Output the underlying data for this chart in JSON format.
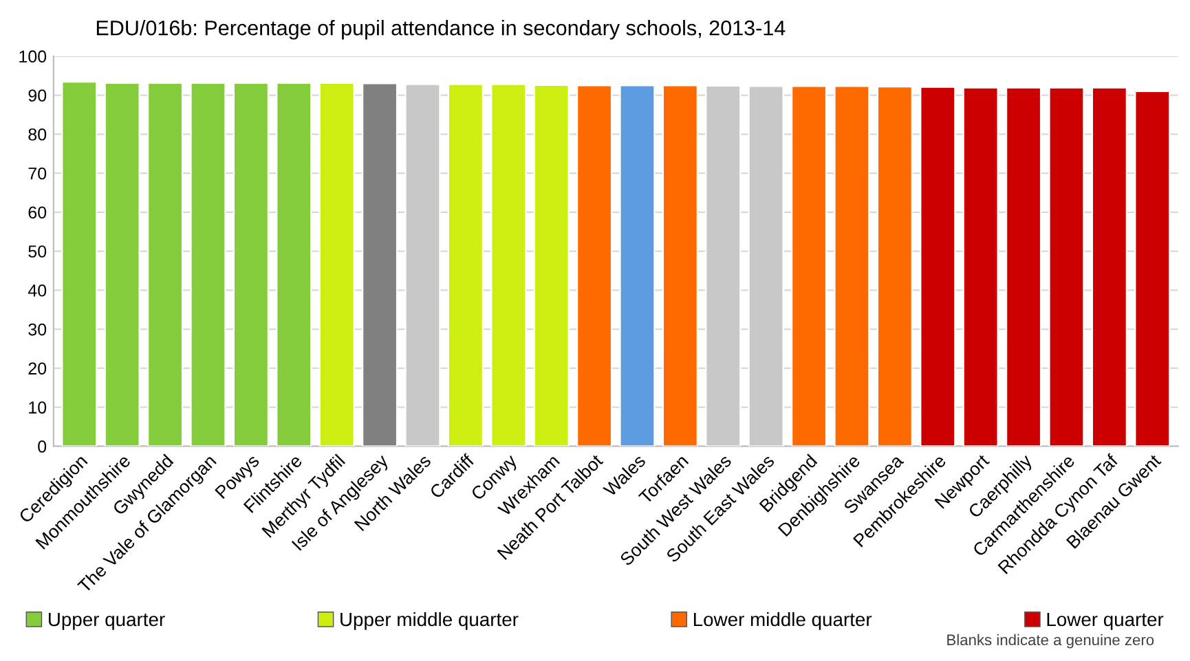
{
  "chart_data": {
    "type": "bar",
    "title": "EDU/016b: Percentage of pupil attendance in secondary schools, 2013-14",
    "categories": [
      "Ceredigion",
      "Monmouthshire",
      "Gwynedd",
      "The Vale of Glamorgan",
      "Powys",
      "Flintshire",
      "Merthyr Tydfil",
      "Isle of Anglesey",
      "North Wales",
      "Cardiff",
      "Conwy",
      "Wrexham",
      "Neath Port Talbot",
      "Wales",
      "Torfaen",
      "South West Wales",
      "South East Wales",
      "Bridgend",
      "Denbighshire",
      "Swansea",
      "Pembrokeshire",
      "Newport",
      "Caerphilly",
      "Carmarthenshire",
      "Rhondda Cynon Taf",
      "Blaenau Gwent"
    ],
    "series": [
      {
        "name": "Upper quarter",
        "color": "#84cc3c",
        "values": [
          93.4,
          93.1,
          93.1,
          93.1,
          93.1,
          93.1,
          null,
          null,
          null,
          null,
          null,
          null,
          null,
          null,
          null,
          null,
          null,
          null,
          null,
          null,
          null,
          null,
          null,
          null,
          null,
          null
        ]
      },
      {
        "name": "Upper middle quarter",
        "color": "#ccee11",
        "values": [
          null,
          null,
          null,
          null,
          null,
          null,
          93.1,
          null,
          null,
          92.8,
          92.8,
          92.6,
          null,
          null,
          null,
          null,
          null,
          null,
          null,
          null,
          null,
          null,
          null,
          null,
          null,
          null
        ]
      },
      {
        "name": "Lower middle quarter",
        "color": "#ff6a00",
        "values": [
          null,
          null,
          null,
          null,
          null,
          null,
          null,
          null,
          null,
          null,
          null,
          null,
          92.5,
          null,
          92.5,
          null,
          null,
          92.3,
          92.3,
          92.2,
          null,
          null,
          null,
          null,
          null,
          null
        ]
      },
      {
        "name": "Lower quarter",
        "color": "#cc0000",
        "values": [
          null,
          null,
          null,
          null,
          null,
          null,
          null,
          null,
          null,
          null,
          null,
          null,
          null,
          null,
          null,
          null,
          null,
          null,
          null,
          null,
          92.1,
          91.9,
          91.9,
          91.9,
          91.9,
          91.0
        ]
      },
      {
        "color": "#808080",
        "values": [
          null,
          null,
          null,
          null,
          null,
          null,
          null,
          93.0,
          null,
          null,
          null,
          null,
          null,
          null,
          null,
          null,
          null,
          null,
          null,
          null,
          null,
          null,
          null,
          null,
          null,
          null
        ]
      },
      {
        "color": "#c8c8c8",
        "values": [
          null,
          null,
          null,
          null,
          null,
          null,
          null,
          null,
          92.8,
          null,
          null,
          null,
          null,
          null,
          null,
          92.4,
          92.3,
          null,
          null,
          null,
          null,
          null,
          null,
          null,
          null,
          null
        ]
      },
      {
        "color": "#5b9be0",
        "values": [
          null,
          null,
          null,
          null,
          null,
          null,
          null,
          null,
          null,
          null,
          null,
          null,
          null,
          92.5,
          null,
          null,
          null,
          null,
          null,
          null,
          null,
          null,
          null,
          null,
          null,
          null
        ]
      }
    ],
    "ylim": [
      0,
      100
    ],
    "yticks": [
      0,
      10,
      20,
      30,
      40,
      50,
      60,
      70,
      80,
      90,
      100
    ],
    "grid": "y",
    "legend": "bottom",
    "annotations": [
      "Blanks indicate a genuine zero"
    ]
  }
}
